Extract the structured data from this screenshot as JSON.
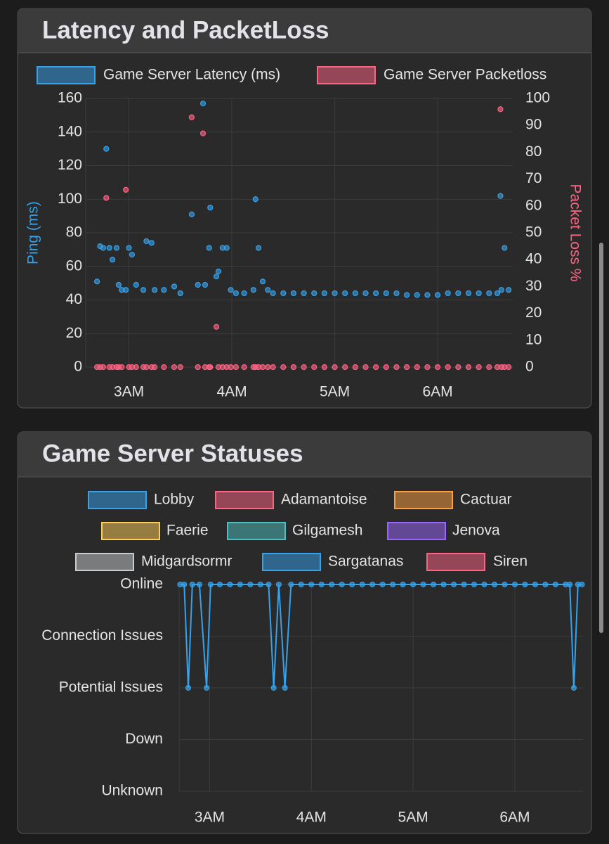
{
  "chart_data": [
    {
      "type": "scatter",
      "title": "Latency and PacketLoss",
      "y_label": "Ping (ms)",
      "y2_label": "Packet Loss %",
      "x": [
        2.69,
        2.72,
        2.75,
        2.78,
        2.81,
        2.84,
        2.88,
        2.9,
        2.93,
        2.97,
        3.0,
        3.03,
        3.07,
        3.14,
        3.17,
        3.22,
        3.25,
        3.34,
        3.44,
        3.5,
        3.61,
        3.67,
        3.72,
        3.74,
        3.78,
        3.79,
        3.85,
        3.87,
        3.91,
        3.95,
        3.99,
        4.04,
        4.12,
        4.21,
        4.23,
        4.26,
        4.3,
        4.35,
        4.4,
        4.5,
        4.6,
        4.7,
        4.8,
        4.9,
        5.0,
        5.1,
        5.2,
        5.3,
        5.4,
        5.5,
        5.6,
        5.7,
        5.8,
        5.9,
        6.0,
        6.1,
        6.2,
        6.3,
        6.4,
        6.5,
        6.58,
        6.61,
        6.62,
        6.65,
        6.69
      ],
      "series": [
        {
          "name": "Game Server Latency (ms)",
          "color": "#36a2eb",
          "values": [
            51,
            72,
            71,
            130,
            71,
            64,
            71,
            49,
            46,
            46,
            71,
            67,
            49,
            46,
            75,
            74,
            46,
            46,
            48,
            44,
            91,
            49,
            157,
            49,
            71,
            95,
            54,
            57,
            71,
            71,
            46,
            44,
            44,
            46,
            100,
            71,
            51,
            46,
            44,
            44,
            44,
            44,
            44,
            44,
            44,
            44,
            44,
            44,
            44,
            44,
            44,
            43,
            43,
            43,
            43,
            44,
            44,
            44,
            44,
            44,
            44,
            102,
            46,
            71,
            46
          ]
        },
        {
          "name": "Game Server Packetloss",
          "color": "#ff6384",
          "axis": "y2",
          "values": [
            0,
            0,
            0,
            63,
            0,
            0,
            0,
            0,
            0,
            66,
            0,
            0,
            0,
            0,
            0,
            0,
            0,
            0,
            0,
            0,
            93,
            0,
            87,
            0,
            0,
            0,
            15,
            0,
            0,
            0,
            0,
            0,
            0,
            0,
            0,
            0,
            0,
            0,
            0,
            0,
            0,
            0,
            0,
            0,
            0,
            0,
            0,
            0,
            0,
            0,
            0,
            0,
            0,
            0,
            0,
            0,
            0,
            0,
            0,
            0,
            0,
            96,
            0,
            0,
            0
          ]
        }
      ],
      "xlim": [
        2.58,
        6.73
      ],
      "xticks": [
        {
          "value": 3,
          "label": "3AM"
        },
        {
          "value": 4,
          "label": "4AM"
        },
        {
          "value": 5,
          "label": "5AM"
        },
        {
          "value": 6,
          "label": "6AM"
        }
      ],
      "ylim": [
        0,
        160
      ],
      "yticks": [
        0,
        20,
        40,
        60,
        80,
        100,
        120,
        140,
        160
      ],
      "y2lim": [
        0,
        100
      ],
      "y2ticks": [
        0,
        10,
        20,
        30,
        40,
        50,
        60,
        70,
        80,
        90,
        100
      ],
      "grid": true
    },
    {
      "type": "line",
      "title": "Game Server Statuses",
      "y_categories": [
        "Online",
        "Connection Issues",
        "Potential Issues",
        "Down",
        "Unknown"
      ],
      "x": [
        2.71,
        2.75,
        2.79,
        2.83,
        2.9,
        2.97,
        3.01,
        3.1,
        3.2,
        3.3,
        3.4,
        3.5,
        3.58,
        3.63,
        3.68,
        3.74,
        3.8,
        3.9,
        4.0,
        4.1,
        4.2,
        4.3,
        4.4,
        4.5,
        4.6,
        4.7,
        4.8,
        4.9,
        5.0,
        5.1,
        5.2,
        5.3,
        5.4,
        5.5,
        5.6,
        5.7,
        5.8,
        5.9,
        6.0,
        6.1,
        6.2,
        6.3,
        6.4,
        6.5,
        6.54,
        6.58,
        6.62,
        6.66
      ],
      "series": [
        {
          "name": "Lobby",
          "color": "#36a2eb",
          "values": [
            "Online",
            "Online",
            "Potential Issues",
            "Online",
            "Online",
            "Potential Issues",
            "Online",
            "Online",
            "Online",
            "Online",
            "Online",
            "Online",
            "Online",
            "Potential Issues",
            "Online",
            "Potential Issues",
            "Online",
            "Online",
            "Online",
            "Online",
            "Online",
            "Online",
            "Online",
            "Online",
            "Online",
            "Online",
            "Online",
            "Online",
            "Online",
            "Online",
            "Online",
            "Online",
            "Online",
            "Online",
            "Online",
            "Online",
            "Online",
            "Online",
            "Online",
            "Online",
            "Online",
            "Online",
            "Online",
            "Online",
            "Online",
            "Potential Issues",
            "Online",
            "Online"
          ]
        },
        {
          "name": "Adamantoise",
          "color": "#ff6384"
        },
        {
          "name": "Cactuar",
          "color": "#ff9f40"
        },
        {
          "name": "Faerie",
          "color": "#ffcd56"
        },
        {
          "name": "Gilgamesh",
          "color": "#4bc0c0"
        },
        {
          "name": "Jenova",
          "color": "#9966ff"
        },
        {
          "name": "Midgardsormr",
          "color": "#c9cbcf"
        },
        {
          "name": "Sargatanas",
          "color": "#36a2eb"
        },
        {
          "name": "Siren",
          "color": "#ff6384"
        }
      ],
      "xlim": [
        2.7,
        6.67
      ],
      "xticks": [
        {
          "value": 3,
          "label": "3AM"
        },
        {
          "value": 4,
          "label": "4AM"
        },
        {
          "value": 5,
          "label": "5AM"
        },
        {
          "value": 6,
          "label": "6AM"
        }
      ],
      "grid": true
    }
  ]
}
